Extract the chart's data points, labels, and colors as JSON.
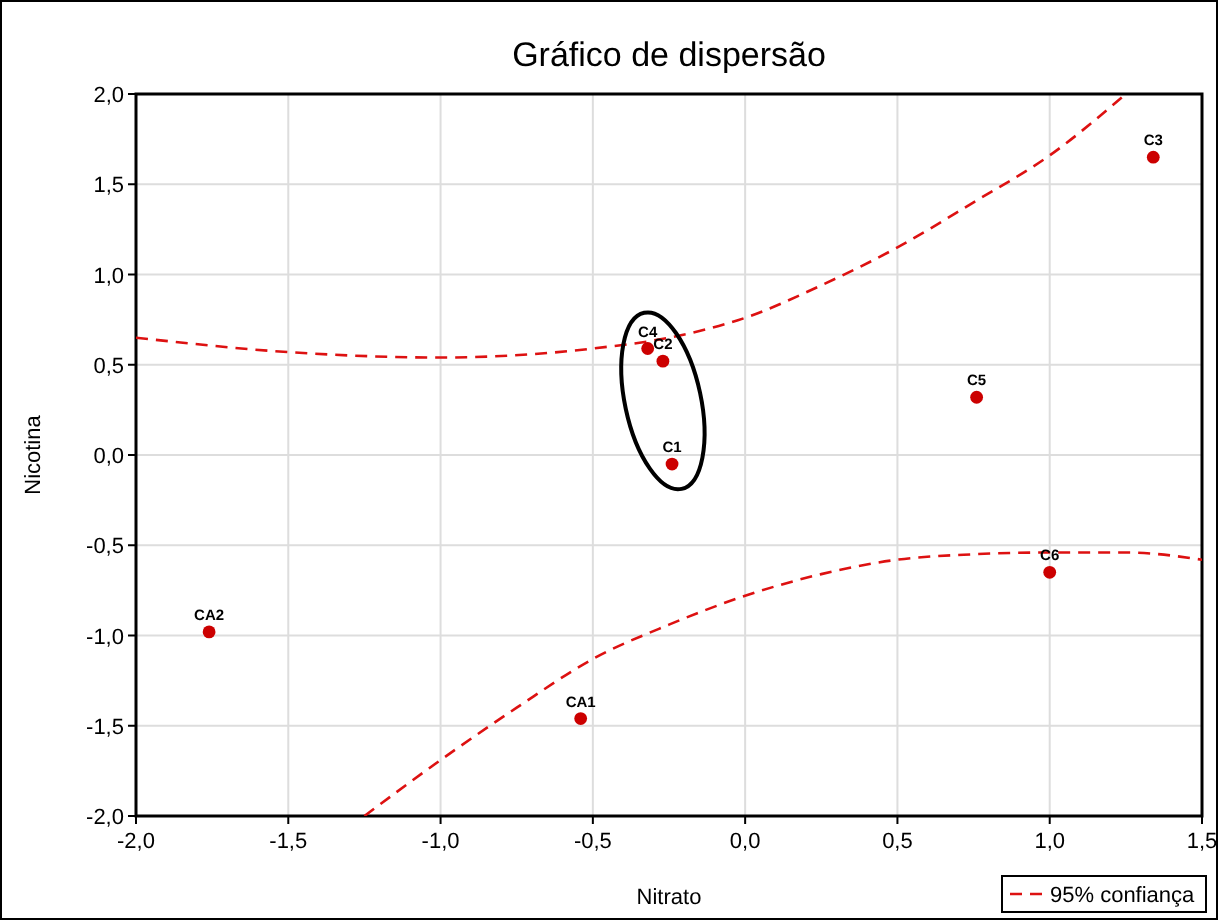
{
  "chart_data": {
    "type": "scatter",
    "title": "Gráfico de dispersão",
    "xlabel": "Nitrato",
    "ylabel": "Nicotina",
    "xlim": [
      -2,
      1.5
    ],
    "ylim": [
      -2,
      2
    ],
    "xticks": [
      {
        "value": -2,
        "label": "-2,0"
      },
      {
        "value": -1.5,
        "label": "-1,5"
      },
      {
        "value": -1,
        "label": "-1,0"
      },
      {
        "value": -0.5,
        "label": "-0,5"
      },
      {
        "value": 0,
        "label": "0,0"
      },
      {
        "value": 0.5,
        "label": "0,5"
      },
      {
        "value": 1,
        "label": "1,0"
      },
      {
        "value": 1.5,
        "label": "1,5"
      }
    ],
    "yticks": [
      {
        "value": -2,
        "label": "-2,0"
      },
      {
        "value": -1.5,
        "label": "-1,5"
      },
      {
        "value": -1,
        "label": "-1,0"
      },
      {
        "value": -0.5,
        "label": "-0,5"
      },
      {
        "value": 0,
        "label": "0,0"
      },
      {
        "value": 0.5,
        "label": "0,5"
      },
      {
        "value": 1,
        "label": "1,0"
      },
      {
        "value": 1.5,
        "label": "1,5"
      },
      {
        "value": 2,
        "label": "2,0"
      }
    ],
    "grid": true,
    "legend": "bottom right",
    "series": [
      {
        "marker": "circle",
        "color": "#cc0000",
        "x": [
          -0.24,
          -0.27,
          1.34,
          -0.32,
          0.76,
          1.0,
          -0.54,
          -1.76
        ],
        "values": [
          -0.05,
          0.52,
          1.65,
          0.59,
          0.32,
          -0.65,
          -1.46,
          -0.98
        ]
      },
      {
        "type": "line",
        "name": "95% confiança",
        "color": "#dd1111",
        "line_style": "dashed",
        "x": [
          -2,
          -1.5,
          -1,
          -0.5,
          -0.25,
          0,
          0.25,
          0.5,
          0.75,
          1,
          1.25
        ],
        "values": [
          0.65,
          0.57,
          0.54,
          0.59,
          0.65,
          0.76,
          0.94,
          1.15,
          1.4,
          1.66,
          2.0
        ]
      },
      {
        "type": "line",
        "color": "#dd1111",
        "line_style": "dashed",
        "x": [
          -1.25,
          -1,
          -0.75,
          -0.5,
          -0.25,
          0,
          0.25,
          0.5,
          0.75,
          1,
          1.25,
          1.5
        ],
        "values": [
          -2.0,
          -1.69,
          -1.4,
          -1.13,
          -0.94,
          -0.78,
          -0.66,
          -0.58,
          -0.55,
          -0.54,
          -0.54,
          -0.58
        ]
      }
    ],
    "annotations": [
      {
        "text": "C1",
        "x": -0.24,
        "y": -0.05
      },
      {
        "text": "C2",
        "x": -0.27,
        "y": 0.52
      },
      {
        "text": "C3",
        "x": 1.34,
        "y": 1.65
      },
      {
        "text": "C4",
        "x": -0.32,
        "y": 0.59
      },
      {
        "text": "C5",
        "x": 0.76,
        "y": 0.32
      },
      {
        "text": "C6",
        "x": 1.0,
        "y": -0.65
      },
      {
        "text": "CA1",
        "x": -0.54,
        "y": -1.46
      },
      {
        "text": "CA2",
        "x": -1.76,
        "y": -0.98
      }
    ]
  }
}
